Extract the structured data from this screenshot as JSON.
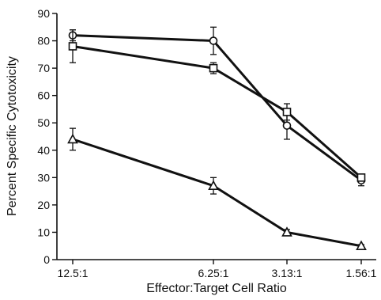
{
  "chart_data": {
    "type": "line",
    "title": "",
    "xlabel": "Effector:Target Cell Ratio",
    "ylabel": "Percent Specific Cytotoxicity",
    "categories": [
      "12.5:1",
      "6.25:1",
      "3.13:1",
      "1.56:1"
    ],
    "ylim": [
      0,
      90
    ],
    "yticks": [
      0,
      10,
      20,
      30,
      40,
      50,
      60,
      70,
      80,
      90
    ],
    "grid": false,
    "legend": "none",
    "series": [
      {
        "marker": "circle",
        "values": [
          82,
          80,
          49,
          29
        ],
        "errors": [
          2,
          5,
          5,
          2
        ]
      },
      {
        "marker": "square",
        "values": [
          78,
          70,
          54,
          30
        ],
        "errors": [
          6,
          2,
          3,
          1
        ]
      },
      {
        "marker": "triangle",
        "values": [
          44,
          27,
          10,
          5
        ],
        "errors": [
          4,
          3,
          1,
          0.5
        ]
      }
    ]
  }
}
